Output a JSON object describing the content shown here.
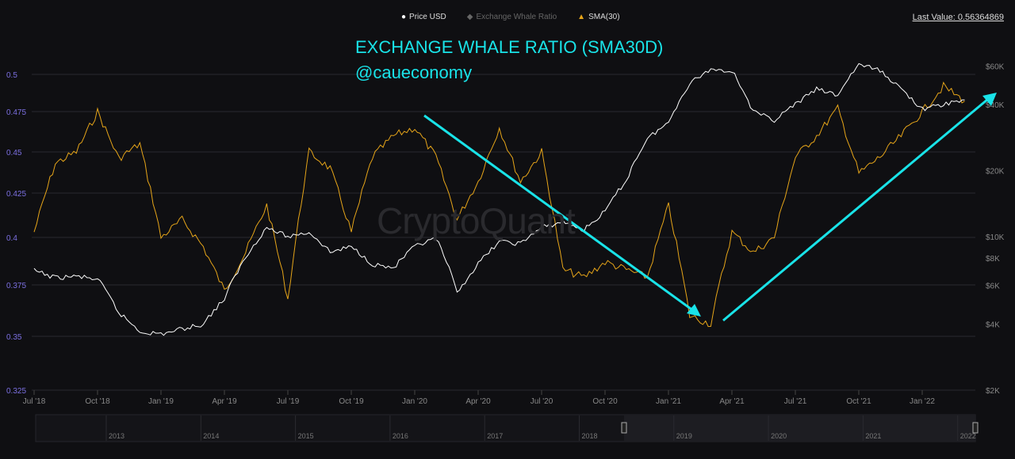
{
  "legend": [
    {
      "label": "Price USD",
      "color": "#ffffff",
      "icon": "circle-icon"
    },
    {
      "label": "Exchange Whale Ratio",
      "color": "#666666",
      "icon": "diamond-icon"
    },
    {
      "label": "SMA(30)",
      "color": "#e6a519",
      "icon": "triangle-icon"
    }
  ],
  "last_value": "Last Value: 0.56364869",
  "annotation": {
    "title": "EXCHANGE WHALE RATIO (SMA30D)",
    "handle": "@caueconomy",
    "color": "#19e3e8"
  },
  "watermark": "CryptoQuant",
  "navigator": {
    "years": [
      "2013",
      "2014",
      "2015",
      "2016",
      "2017",
      "2018",
      "2019",
      "2020",
      "2021",
      "2022"
    ]
  },
  "chart_data": {
    "type": "line",
    "left_axis": {
      "ticks": [
        "0.5",
        "0.475",
        "0.45",
        "0.425",
        "0.4",
        "0.375",
        "0.35",
        "0.325"
      ],
      "range": [
        0.325,
        0.505
      ]
    },
    "right_axis": {
      "scale": "log",
      "ticks": [
        "$60K",
        "$40K",
        "$20K",
        "$10K",
        "$8K",
        "$6K",
        "$4K",
        "$2K"
      ],
      "range": [
        2000,
        60000
      ]
    },
    "x_ticks": [
      "Jul '18",
      "Oct '18",
      "Jan '19",
      "Apr '19",
      "Jul '19",
      "Oct '19",
      "Jan '20",
      "Apr '20",
      "Jul '20",
      "Oct '20",
      "Jan '21",
      "Apr '21",
      "Jul '21",
      "Oct '21",
      "Jan '22"
    ],
    "x": [
      "2018-07",
      "2018-08",
      "2018-09",
      "2018-10",
      "2018-11",
      "2018-12",
      "2019-01",
      "2019-02",
      "2019-03",
      "2019-04",
      "2019-05",
      "2019-06",
      "2019-07",
      "2019-08",
      "2019-09",
      "2019-10",
      "2019-11",
      "2019-12",
      "2020-01",
      "2020-02",
      "2020-03",
      "2020-04",
      "2020-05",
      "2020-06",
      "2020-07",
      "2020-08",
      "2020-09",
      "2020-10",
      "2020-11",
      "2020-12",
      "2021-01",
      "2021-02",
      "2021-03",
      "2021-04",
      "2021-05",
      "2021-06",
      "2021-07",
      "2021-08",
      "2021-09",
      "2021-10",
      "2021-11",
      "2021-12",
      "2022-01",
      "2022-02",
      "2022-03"
    ],
    "series": [
      {
        "name": "SMA(30)",
        "axis": "left",
        "color": "#e6a519",
        "values": [
          0.403,
          0.443,
          0.45,
          0.475,
          0.446,
          0.455,
          0.4,
          0.41,
          0.395,
          0.372,
          0.392,
          0.418,
          0.368,
          0.45,
          0.44,
          0.403,
          0.447,
          0.46,
          0.465,
          0.447,
          0.41,
          0.432,
          0.465,
          0.432,
          0.45,
          0.383,
          0.379,
          0.387,
          0.383,
          0.379,
          0.418,
          0.36,
          0.356,
          0.403,
          0.392,
          0.4,
          0.447,
          0.46,
          0.477,
          0.437,
          0.447,
          0.46,
          0.475,
          0.492,
          0.482
        ]
      },
      {
        "name": "Price USD",
        "axis": "right",
        "color": "#ffffff",
        "values": [
          7000,
          6500,
          6600,
          6400,
          4500,
          3700,
          3600,
          3800,
          4000,
          5200,
          8000,
          11000,
          10000,
          10500,
          8500,
          9000,
          7500,
          7200,
          9000,
          9800,
          5500,
          7500,
          9500,
          9300,
          11000,
          11700,
          10700,
          13000,
          18000,
          28000,
          33000,
          50000,
          58000,
          57000,
          37000,
          34000,
          40000,
          47000,
          44000,
          61000,
          57000,
          47000,
          38000,
          40000,
          42000
        ]
      }
    ],
    "grid": true
  }
}
